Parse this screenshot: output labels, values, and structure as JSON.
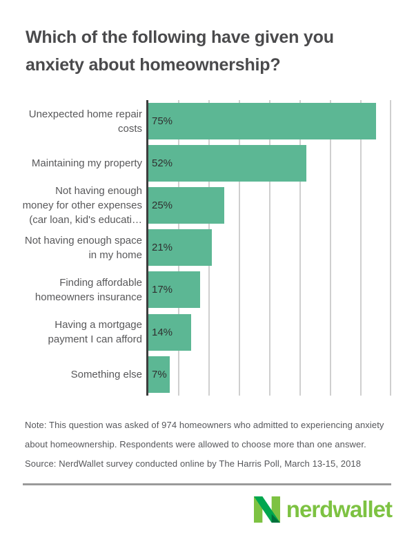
{
  "title": "Which of the following have given you\nanxiety about homeownership?",
  "chart_data": {
    "type": "bar",
    "orientation": "horizontal",
    "title": "Which of the following have given you anxiety about homeownership?",
    "xlabel": "",
    "ylabel": "",
    "xlim": [
      0,
      80
    ],
    "xmax": 80,
    "gridline_interval": 10,
    "grid": "vertical gridlines every 10%, no tick labels shown",
    "legend": "none",
    "bar_color": "#5cb794",
    "categories": [
      "Unexpected home repair costs",
      "Maintaining my property",
      "Not having enough money for other expenses (car loan, kid's educati…",
      "Not having enough space in my home",
      "Finding affordable homeowners insurance",
      "Having a mortgage payment I can afford",
      "Something else"
    ],
    "values": [
      75,
      52,
      25,
      21,
      17,
      14,
      7
    ],
    "rows": [
      {
        "label": "Unexpected home repair\ncosts",
        "value": 75,
        "value_label": "75%"
      },
      {
        "label": "Maintaining my property",
        "value": 52,
        "value_label": "52%"
      },
      {
        "label": "Not having enough\nmoney for other expenses\n(car loan, kid's educati…",
        "value": 25,
        "value_label": "25%"
      },
      {
        "label": "Not having enough space\nin my home",
        "value": 21,
        "value_label": "21%"
      },
      {
        "label": "Finding affordable\nhomeowners insurance",
        "value": 17,
        "value_label": "17%"
      },
      {
        "label": "Having a mortgage\npayment I can afford",
        "value": 14,
        "value_label": "14%"
      },
      {
        "label": "Something else",
        "value": 7,
        "value_label": "7%"
      }
    ]
  },
  "note": "Note: This question was asked of 974 homeowners who admitted to experiencing anxiety\nabout homeownership. Respondents were allowed to choose more than one answer.",
  "source": "Source: NerdWallet survey conducted online by The Harris Poll, March 13-15, 2018",
  "footer": {
    "logo_text": "nerdwallet",
    "brand_light_green": "#7dc242",
    "brand_mid_green": "#00a64f",
    "brand_dark_green": "#00703c"
  },
  "colors": {
    "bar": "#5cb794",
    "axis": "#3d3d3d",
    "gridline": "#cfcfcf",
    "title_text": "#4a4a4c",
    "label_text": "#58585a",
    "note_text": "#55565a",
    "separator": "#9a9a9a"
  }
}
